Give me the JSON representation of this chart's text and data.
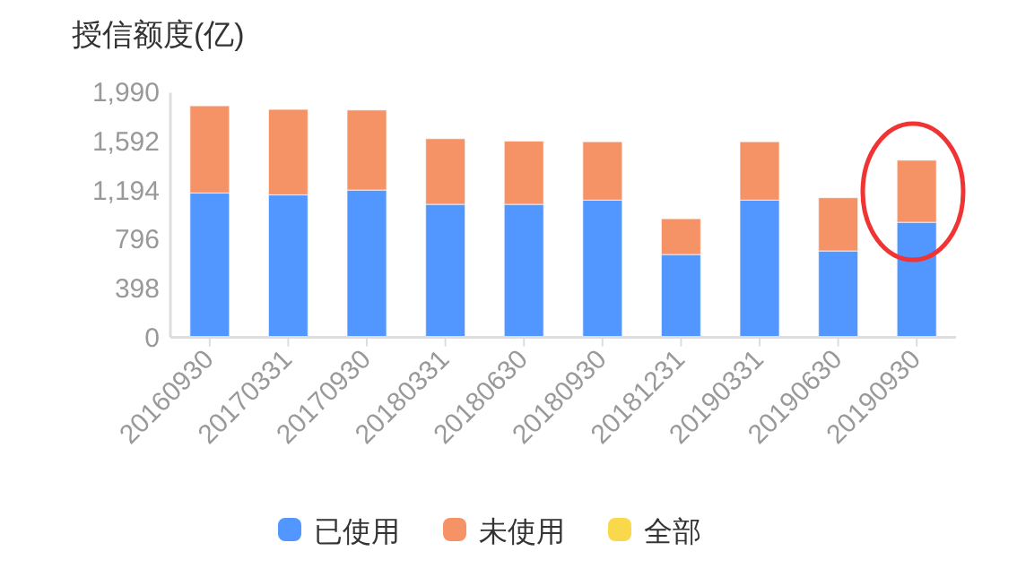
{
  "chart_data": {
    "type": "bar",
    "title": "授信额度(亿)",
    "stacked": true,
    "legend": "bottom",
    "grid": false,
    "categories": [
      "20160930",
      "20170331",
      "20170930",
      "20180331",
      "20180630",
      "20180930",
      "20181231",
      "20190331",
      "20190630",
      "20190930"
    ],
    "series": [
      {
        "name": "已使用",
        "color": "#5297ff",
        "values": [
          1174,
          1159,
          1198,
          1082,
          1082,
          1116,
          674,
          1116,
          703,
          936
        ]
      },
      {
        "name": "未使用",
        "color": "#f59266",
        "values": [
          709,
          695,
          651,
          534,
          514,
          475,
          291,
          475,
          433,
          505
        ]
      },
      {
        "name": "全部",
        "color": "#f9d94b",
        "values": [
          null,
          null,
          null,
          null,
          null,
          null,
          null,
          null,
          null,
          null
        ]
      }
    ],
    "ylim": [
      0,
      1990
    ],
    "yticks": [
      0,
      {
        "value": 398,
        "label": "398"
      },
      {
        "value": 796,
        "label": "796"
      },
      {
        "value": 1194,
        "label": "1,194"
      },
      {
        "value": 1592,
        "label": "1,592"
      },
      {
        "value": 1990,
        "label": "1,990"
      }
    ]
  }
}
